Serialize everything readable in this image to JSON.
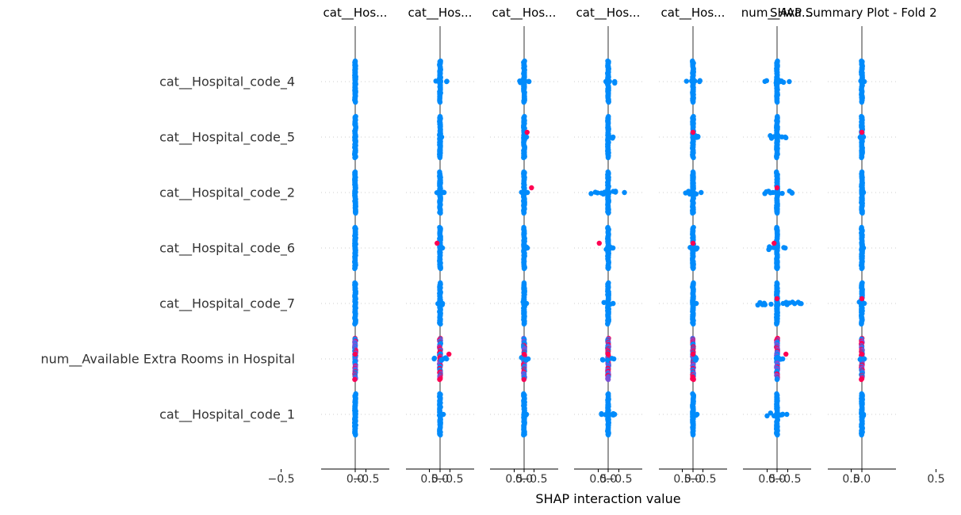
{
  "chart_data": {
    "type": "scatter",
    "subtype": "shap_interaction_summary_beeswarm",
    "title": "SHAP Summary Plot - Fold 2",
    "xlabel": "SHAP interaction value",
    "ylabel": "",
    "xlim": [
      -0.75,
      0.75
    ],
    "x_ticks": [
      "−0.5",
      "0.0",
      "0.5"
    ],
    "grid": "dotted horizontal per feature row",
    "legend": "none",
    "color_scale": {
      "low": "#008bfb",
      "mid": "#7c52d8",
      "high": "#ff0052"
    },
    "panel_titles": [
      "cat__Hos...",
      "cat__Hos...",
      "cat__Hos...",
      "cat__Hos...",
      "cat__Hos...",
      "num__Ava...",
      ""
    ],
    "features": [
      "cat__Hospital_code_4",
      "cat__Hospital_code_5",
      "cat__Hospital_code_2",
      "cat__Hospital_code_6",
      "cat__Hospital_code_7",
      "num__Available Extra Rooms in Hospital",
      "cat__Hospital_code_1"
    ],
    "panels": [
      {
        "title": "cat__Hos...",
        "spread": [
          0.0,
          0.0,
          0.0,
          0.0,
          0.0,
          0.0,
          0.0
        ],
        "high_points": [
          [],
          [],
          [],
          [],
          [],
          [
            0
          ],
          []
        ],
        "mixed": [
          false,
          false,
          false,
          false,
          false,
          true,
          false
        ]
      },
      {
        "title": "cat__Hos...",
        "spread": [
          0.08,
          0.02,
          0.05,
          0.03,
          0.03,
          0.08,
          0.04
        ],
        "high_points": [
          [],
          [],
          [],
          [
            -0.02
          ],
          [],
          [
            0.06
          ],
          []
        ],
        "mixed": [
          false,
          false,
          false,
          false,
          false,
          true,
          false
        ]
      },
      {
        "title": "cat__Hos...",
        "spread": [
          0.06,
          0.03,
          0.04,
          0.04,
          0.03,
          0.05,
          0.03
        ],
        "high_points": [
          [],
          [
            0.02
          ],
          [
            0.05
          ],
          [],
          [],
          [
            0.0
          ],
          []
        ],
        "mixed": [
          false,
          false,
          false,
          false,
          false,
          true,
          false
        ]
      },
      {
        "title": "cat__Hos...",
        "spread": [
          0.08,
          0.06,
          0.2,
          0.06,
          0.06,
          0.07,
          0.08
        ],
        "high_points": [
          [],
          [],
          [],
          [
            -0.06
          ],
          [],
          [
            0.0
          ],
          []
        ],
        "mixed": [
          false,
          false,
          false,
          false,
          false,
          true,
          false
        ]
      },
      {
        "title": "cat__Hos...",
        "spread": [
          0.08,
          0.06,
          0.1,
          0.05,
          0.04,
          0.04,
          0.05
        ],
        "high_points": [
          [],
          [
            0.0
          ],
          [],
          [
            0.0
          ],
          [],
          [
            0.0
          ],
          []
        ],
        "mixed": [
          false,
          false,
          false,
          false,
          false,
          true,
          false
        ]
      },
      {
        "title": "num__Ava...",
        "spread": [
          0.15,
          0.1,
          0.18,
          0.1,
          0.28,
          0.07,
          0.12
        ],
        "high_points": [
          [],
          [],
          [
            0.0
          ],
          [
            -0.02
          ],
          [
            0.0
          ],
          [
            0.06
          ],
          []
        ],
        "mixed": [
          false,
          false,
          false,
          false,
          false,
          true,
          false
        ]
      },
      {
        "title": "",
        "spread": [
          0.03,
          0.02,
          0.02,
          0.02,
          0.03,
          0.03,
          0.02
        ],
        "high_points": [
          [],
          [
            0.0
          ],
          [],
          [],
          [
            0.0
          ],
          [
            0.0
          ],
          []
        ],
        "mixed": [
          false,
          false,
          false,
          false,
          false,
          true,
          false
        ]
      }
    ]
  },
  "labels": {
    "features": [
      "cat__Hospital_code_4",
      "cat__Hospital_code_5",
      "cat__Hospital_code_2",
      "cat__Hospital_code_6",
      "cat__Hospital_code_7",
      "num__Available Extra Rooms in Hospital",
      "cat__Hospital_code_1"
    ],
    "panel_titles": [
      "cat__Hos...",
      "cat__Hos...",
      "cat__Hos...",
      "cat__Hos...",
      "cat__Hos...",
      "num__Ava..."
    ],
    "main_title": "SHAP Summary Plot - Fold 2",
    "xlabel": "SHAP interaction value",
    "ticks": [
      "−0.5",
      "0.0",
      "0.5"
    ]
  }
}
